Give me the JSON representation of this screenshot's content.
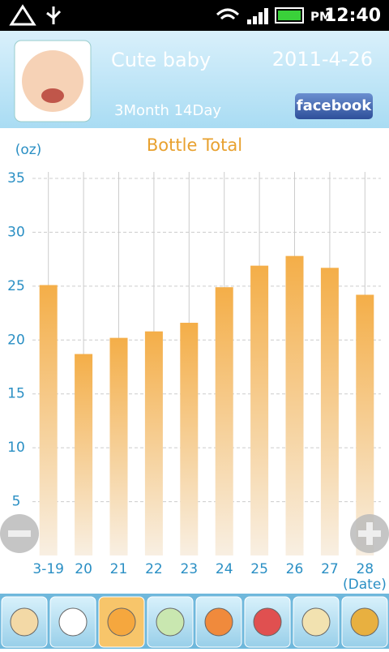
{
  "status_bar": {
    "ampm": "PM",
    "time": "12:40"
  },
  "header": {
    "name": "Cute baby",
    "date": "2011-4-26",
    "age": "3Month 14Day",
    "share": "facebook"
  },
  "chart_data": {
    "type": "bar",
    "title": "Bottle Total",
    "y_label": "(oz)",
    "x_label": "(Date)",
    "categories": [
      "3-19",
      "20",
      "21",
      "22",
      "23",
      "24",
      "25",
      "26",
      "27",
      "28"
    ],
    "values": [
      25.1,
      18.7,
      20.2,
      20.8,
      21.6,
      24.9,
      26.9,
      27.8,
      26.7,
      24.2
    ],
    "color": "#f4ae48",
    "ylim": [
      0,
      35
    ],
    "yticks": [
      5,
      10,
      15,
      20,
      25,
      30,
      35
    ],
    "grid": true
  }
}
